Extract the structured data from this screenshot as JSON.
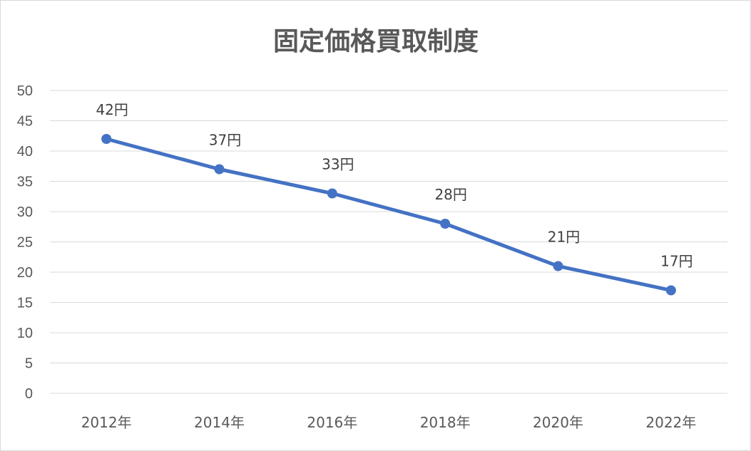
{
  "chart_data": {
    "type": "line",
    "title": "固定価格買取制度",
    "categories": [
      "2012年",
      "2014年",
      "2016年",
      "2018年",
      "2020年",
      "2022年"
    ],
    "values": [
      42,
      37,
      33,
      28,
      21,
      17
    ],
    "data_labels": [
      "42円",
      "37円",
      "33円",
      "28円",
      "21円",
      "17円"
    ],
    "ylim": [
      0,
      50
    ],
    "y_ticks": [
      "0",
      "5",
      "10",
      "15",
      "20",
      "25",
      "30",
      "35",
      "40",
      "45",
      "50"
    ],
    "grid": true,
    "legend": "none",
    "series_color": "#4472c4"
  }
}
